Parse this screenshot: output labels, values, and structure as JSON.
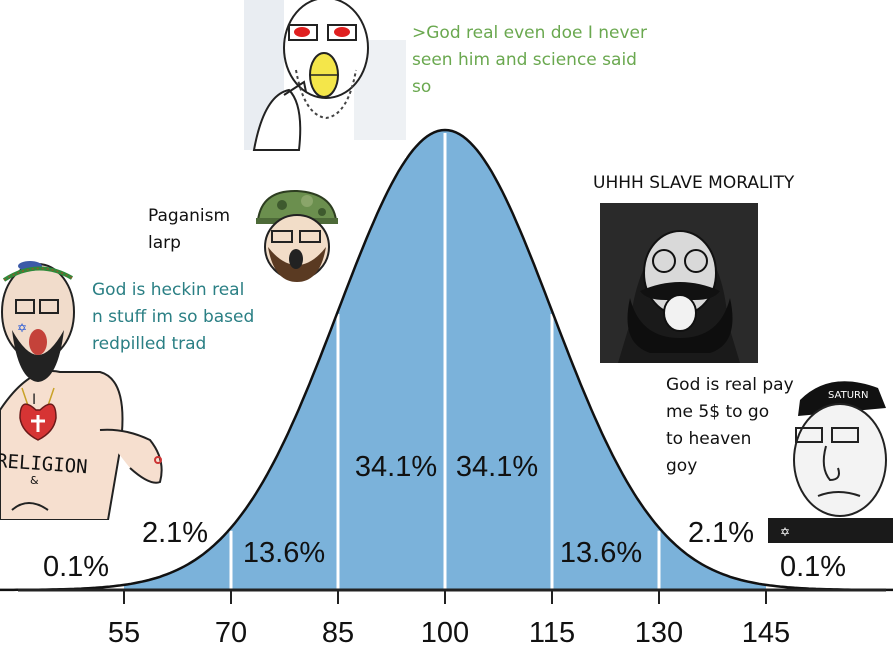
{
  "chart_data": {
    "type": "area",
    "title": "",
    "xlabel": "",
    "ylabel": "",
    "mean": 100,
    "sd": 15,
    "xlim": [
      25,
      175
    ],
    "x_ticks": [
      55,
      70,
      85,
      100,
      115,
      130,
      145
    ],
    "section_boundaries": [
      70,
      85,
      100,
      115,
      130
    ],
    "fill_range": [
      55,
      145
    ],
    "fill_color": "#7bb2da",
    "segment_labels": [
      {
        "text": "0.1%",
        "range": [
          25,
          55
        ]
      },
      {
        "text": "2.1%",
        "range": [
          55,
          70
        ]
      },
      {
        "text": "13.6%",
        "range": [
          70,
          85
        ]
      },
      {
        "text": "34.1%",
        "range": [
          85,
          100
        ]
      },
      {
        "text": "34.1%",
        "range": [
          100,
          115
        ]
      },
      {
        "text": "13.6%",
        "range": [
          115,
          130
        ]
      },
      {
        "text": "2.1%",
        "range": [
          130,
          145
        ]
      },
      {
        "text": "0.1%",
        "range": [
          145,
          175
        ]
      }
    ]
  },
  "captions": {
    "top": ">God real even doe I never\nseen him and science said\nso",
    "left_mid": "Paganism\nlarp",
    "left_low": "God is heckin real\nn stuff im so based\n redpilled trad",
    "right_top": "UHHH SLAVE MORALITY",
    "right_low": "God is real pay\nme 5$ to go\nto heaven\ngoy"
  },
  "meme_text": {
    "religion_shirt": "RELIGION",
    "shirt_i": "I",
    "shirt_amp": "&",
    "saturn_hat": "SATURN"
  },
  "colors": {
    "curve_fill": "#7bb2da",
    "divider": "#ffffff",
    "caption_green": "#6aa84f",
    "caption_teal": "#2a7f84"
  }
}
